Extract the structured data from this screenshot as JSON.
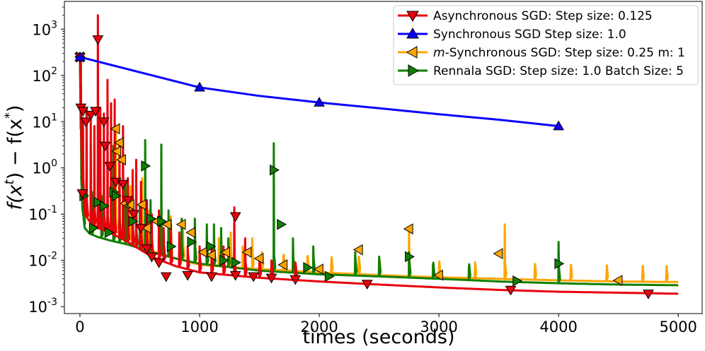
{
  "chart_data": {
    "type": "line",
    "title": "",
    "xlabel": "times (seconds)",
    "ylabel_parts": [
      "f(x",
      "t",
      ") − f(x",
      "*",
      ")"
    ],
    "yscale": "log",
    "xlim": [
      -130,
      5200
    ],
    "ylim_log10": [
      -3.15,
      3.6
    ],
    "xticks": [
      0,
      1000,
      2000,
      3000,
      4000,
      5000
    ],
    "xtick_labels": [
      "0",
      "1000",
      "2000",
      "3000",
      "4000",
      "5000"
    ],
    "yticks": [
      {
        "base": "10",
        "exp": "-3",
        "value": 0.001
      },
      {
        "base": "10",
        "exp": "-2",
        "value": 0.01
      },
      {
        "base": "10",
        "exp": "-1",
        "value": 0.1
      },
      {
        "base": "10",
        "exp": "0",
        "value": 1
      },
      {
        "base": "10",
        "exp": "1",
        "value": 10
      },
      {
        "base": "10",
        "exp": "2",
        "value": 100
      },
      {
        "base": "10",
        "exp": "3",
        "value": 1000
      }
    ],
    "legend_position": "top-right",
    "series": [
      {
        "name": "Asynchronous SGD: Step size: 0.125",
        "color": "#e8000b",
        "marker": "triangle-down",
        "trend": [
          [
            0,
            250
          ],
          [
            15,
            0.9
          ],
          [
            40,
            0.1
          ],
          [
            80,
            0.07
          ],
          [
            150,
            0.05
          ],
          [
            250,
            0.04
          ],
          [
            400,
            0.025
          ],
          [
            600,
            0.012
          ],
          [
            800,
            0.0075
          ],
          [
            1000,
            0.0055
          ],
          [
            1500,
            0.0042
          ],
          [
            2000,
            0.0035
          ],
          [
            2500,
            0.003
          ],
          [
            3000,
            0.0026
          ],
          [
            3500,
            0.0023
          ],
          [
            4000,
            0.0021
          ],
          [
            4500,
            0.002
          ],
          [
            5000,
            0.0019
          ]
        ],
        "spikes": [
          [
            8,
            60
          ],
          [
            25,
            12
          ],
          [
            55,
            20
          ],
          [
            90,
            12
          ],
          [
            120,
            8
          ],
          [
            150,
            2000
          ],
          [
            170,
            20
          ],
          [
            200,
            15
          ],
          [
            230,
            80
          ],
          [
            260,
            25
          ],
          [
            290,
            30
          ],
          [
            330,
            4
          ],
          [
            360,
            8
          ],
          [
            400,
            0.6
          ],
          [
            440,
            0.9
          ],
          [
            470,
            1.5
          ],
          [
            510,
            0.5
          ],
          [
            560,
            0.2
          ],
          [
            600,
            0.1
          ],
          [
            660,
            0.12
          ],
          [
            700,
            0.05
          ],
          [
            760,
            0.06
          ],
          [
            830,
            0.04
          ],
          [
            900,
            0.02
          ],
          [
            1000,
            0.02
          ],
          [
            1100,
            0.02
          ],
          [
            1200,
            0.02
          ],
          [
            1290,
            0.14
          ],
          [
            1380,
            0.03
          ],
          [
            1500,
            0.012
          ],
          [
            1600,
            0.01
          ],
          [
            1800,
            0.009
          ]
        ],
        "markers": [
          [
            0,
            250
          ],
          [
            8,
            20
          ],
          [
            25,
            17
          ],
          [
            50,
            10
          ],
          [
            90,
            14
          ],
          [
            130,
            17
          ],
          [
            150,
            600
          ],
          [
            200,
            10
          ],
          [
            210,
            3
          ],
          [
            250,
            1.1
          ],
          [
            300,
            0.5
          ],
          [
            360,
            0.45
          ],
          [
            400,
            0.2
          ],
          [
            450,
            0.1
          ],
          [
            510,
            0.05
          ],
          [
            560,
            0.018
          ],
          [
            600,
            0.012
          ],
          [
            660,
            0.009
          ],
          [
            720,
            0.0045
          ],
          [
            900,
            0.0048
          ],
          [
            1100,
            0.0045
          ],
          [
            1300,
            0.0048
          ],
          [
            1300,
            0.09
          ],
          [
            1450,
            0.0045
          ],
          [
            1600,
            0.0042
          ],
          [
            1800,
            0.0039
          ],
          [
            2400,
            0.0031
          ],
          [
            3600,
            0.0023
          ],
          [
            4750,
            0.0019
          ],
          [
            20,
            0.28
          ]
        ]
      },
      {
        "name": "Synchronous SGD Step size: 1.0",
        "color": "#0a00ff",
        "marker": "triangle-up",
        "trend": [
          [
            0,
            250
          ],
          [
            1000,
            55
          ],
          [
            1500,
            36
          ],
          [
            2000,
            26
          ],
          [
            2500,
            19.5
          ],
          [
            3000,
            14.5
          ],
          [
            3500,
            11
          ],
          [
            4000,
            8
          ]
        ],
        "spikes": [],
        "markers": [
          [
            0,
            250
          ],
          [
            1000,
            55
          ],
          [
            2000,
            26
          ],
          [
            4000,
            8
          ]
        ]
      },
      {
        "name": "m-Synchronous  SGD: Step size: 0.25 m: 1",
        "name_italic": "m",
        "name_rest": "-Synchronous  SGD: Step size: 0.25 m: 1",
        "color": "#ffa500",
        "marker": "triangle-left",
        "trend": [
          [
            0,
            250
          ],
          [
            12,
            0.9
          ],
          [
            35,
            0.15
          ],
          [
            80,
            0.09
          ],
          [
            150,
            0.07
          ],
          [
            250,
            0.05
          ],
          [
            400,
            0.03
          ],
          [
            600,
            0.016
          ],
          [
            800,
            0.011
          ],
          [
            1000,
            0.008
          ],
          [
            1500,
            0.0065
          ],
          [
            2000,
            0.0055
          ],
          [
            2500,
            0.0048
          ],
          [
            3000,
            0.0043
          ],
          [
            3500,
            0.004
          ],
          [
            4000,
            0.0037
          ],
          [
            4500,
            0.0035
          ],
          [
            5000,
            0.0034
          ]
        ],
        "spikes": [
          [
            150,
            1.2
          ],
          [
            260,
            1.5
          ],
          [
            300,
            8
          ],
          [
            330,
            2.3
          ],
          [
            380,
            0.5
          ],
          [
            420,
            0.4
          ],
          [
            520,
            0.6
          ],
          [
            580,
            0.12
          ],
          [
            660,
            0.07
          ],
          [
            760,
            0.09
          ],
          [
            860,
            0.05
          ],
          [
            960,
            0.04
          ],
          [
            1060,
            0.035
          ],
          [
            1160,
            0.03
          ],
          [
            1260,
            0.04
          ],
          [
            1360,
            0.02
          ],
          [
            1440,
            0.03
          ],
          [
            1520,
            0.015
          ],
          [
            1700,
            0.012
          ],
          [
            1900,
            0.012
          ],
          [
            2100,
            0.008
          ],
          [
            2330,
            0.012
          ],
          [
            2500,
            0.008
          ],
          [
            2750,
            0.05
          ],
          [
            3000,
            0.007
          ],
          [
            3300,
            0.006
          ],
          [
            3550,
            0.06
          ],
          [
            3800,
            0.006
          ],
          [
            4100,
            0.005
          ],
          [
            4400,
            0.005
          ],
          [
            4700,
            0.005
          ],
          [
            4900,
            0.005
          ]
        ],
        "markers": [
          [
            0,
            250
          ],
          [
            300,
            7
          ],
          [
            330,
            3.5
          ],
          [
            310,
            2.3
          ],
          [
            350,
            1.5
          ],
          [
            380,
            0.17
          ],
          [
            420,
            0.16
          ],
          [
            520,
            0.16
          ],
          [
            560,
            0.05
          ],
          [
            640,
            0.07
          ],
          [
            730,
            0.06
          ],
          [
            850,
            0.06
          ],
          [
            930,
            0.04
          ],
          [
            1030,
            0.015
          ],
          [
            1100,
            0.013
          ],
          [
            1220,
            0.015
          ],
          [
            1400,
            0.015
          ],
          [
            1500,
            0.011
          ],
          [
            1700,
            0.008
          ],
          [
            2000,
            0.0065
          ],
          [
            2330,
            0.017
          ],
          [
            2750,
            0.048
          ],
          [
            3000,
            0.0048
          ],
          [
            3500,
            0.014
          ],
          [
            4500,
            0.0037
          ]
        ]
      },
      {
        "name": "Rennala SGD: Step size: 1.0 Batch Size: 5",
        "color": "#107f00",
        "marker": "triangle-right",
        "trend": [
          [
            0,
            250
          ],
          [
            12,
            0.2
          ],
          [
            40,
            0.05
          ],
          [
            80,
            0.038
          ],
          [
            150,
            0.032
          ],
          [
            250,
            0.027
          ],
          [
            400,
            0.022
          ],
          [
            600,
            0.015
          ],
          [
            800,
            0.011
          ],
          [
            1000,
            0.0085
          ],
          [
            1500,
            0.006
          ],
          [
            2000,
            0.005
          ],
          [
            2500,
            0.0045
          ],
          [
            3000,
            0.004
          ],
          [
            3500,
            0.0035
          ],
          [
            4000,
            0.0032
          ],
          [
            4500,
            0.003
          ],
          [
            5000,
            0.0029
          ]
        ],
        "spikes": [
          [
            8,
            250
          ],
          [
            30,
            0.4
          ],
          [
            100,
            0.3
          ],
          [
            180,
            0.25
          ],
          [
            280,
            3
          ],
          [
            330,
            0.8
          ],
          [
            380,
            0.5
          ],
          [
            440,
            0.2
          ],
          [
            500,
            0.15
          ],
          [
            545,
            4
          ],
          [
            590,
            0.2
          ],
          [
            680,
            3.2
          ],
          [
            740,
            0.12
          ],
          [
            850,
            0.08
          ],
          [
            960,
            0.08
          ],
          [
            1060,
            0.06
          ],
          [
            1120,
            0.06
          ],
          [
            1180,
            0.05
          ],
          [
            1240,
            0.03
          ],
          [
            1620,
            3.4
          ],
          [
            1780,
            0.03
          ],
          [
            1950,
            0.02
          ],
          [
            2300,
            0.015
          ],
          [
            2500,
            0.012
          ],
          [
            2750,
            0.015
          ],
          [
            2950,
            0.008
          ],
          [
            3250,
            0.007
          ],
          [
            4000,
            0.025
          ]
        ],
        "markers": [
          [
            0,
            250
          ],
          [
            30,
            0.25
          ],
          [
            110,
            0.05
          ],
          [
            150,
            0.18
          ],
          [
            200,
            0.15
          ],
          [
            240,
            0.04
          ],
          [
            280,
            0.3
          ],
          [
            300,
            0.25
          ],
          [
            440,
            0.07
          ],
          [
            545,
            1.1
          ],
          [
            590,
            0.08
          ],
          [
            680,
            0.07
          ],
          [
            760,
            0.02
          ],
          [
            930,
            0.025
          ],
          [
            1090,
            0.02
          ],
          [
            1200,
            0.01
          ],
          [
            1300,
            0.009
          ],
          [
            1620,
            0.9
          ],
          [
            1680,
            0.06
          ],
          [
            1900,
            0.007
          ],
          [
            2080,
            0.0045
          ],
          [
            2750,
            0.012
          ],
          [
            3650,
            0.0036
          ],
          [
            4000,
            0.0085
          ]
        ]
      }
    ]
  }
}
